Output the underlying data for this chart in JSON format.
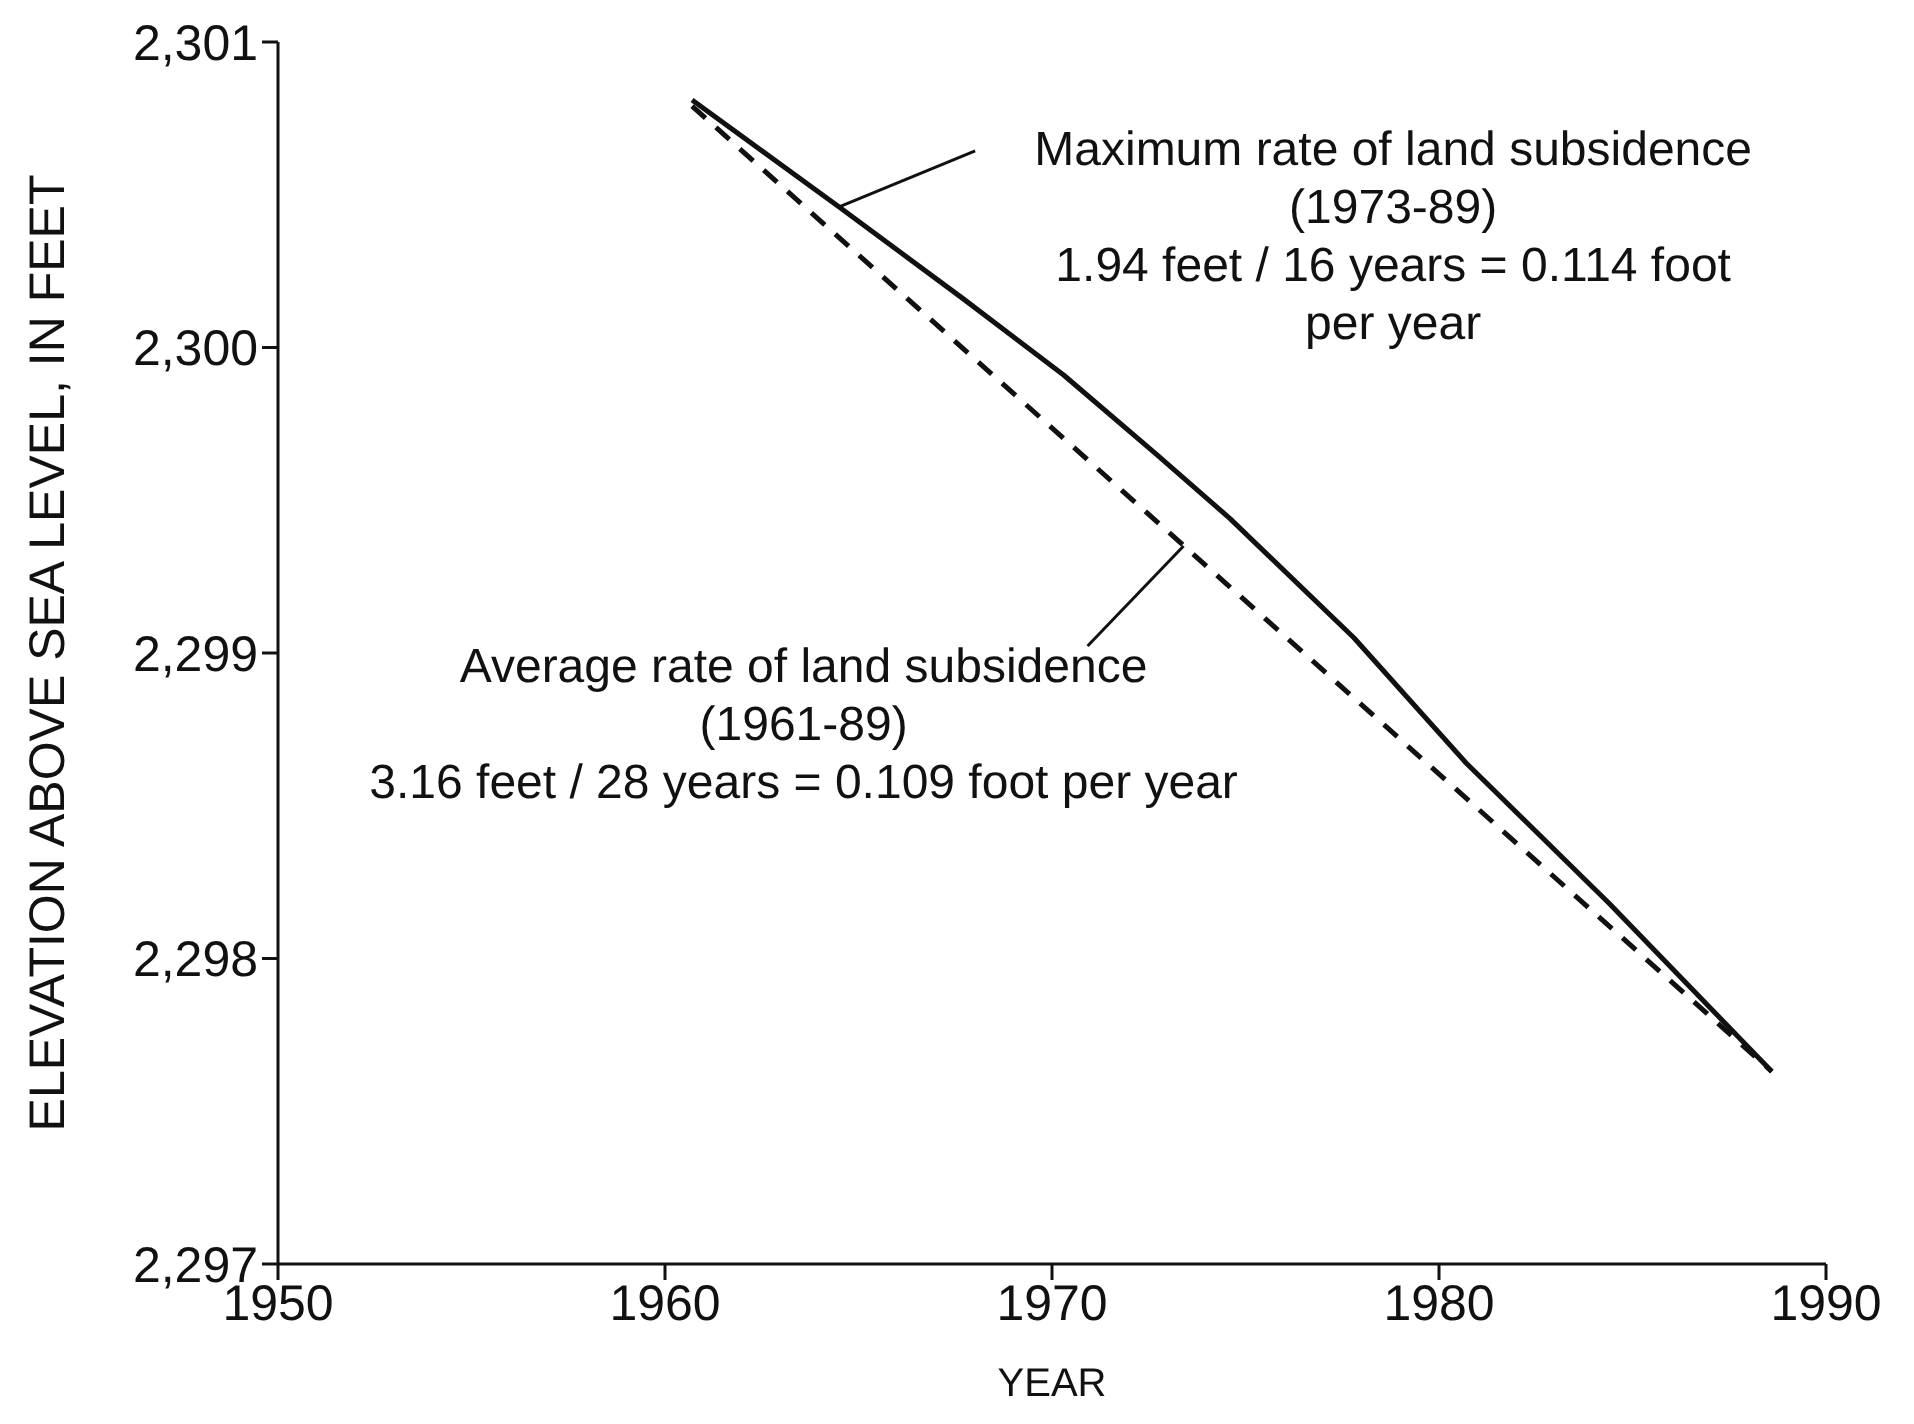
{
  "chart_data": {
    "type": "line",
    "xlabel": "YEAR",
    "ylabel": "ELEVATION ABOVE SEA LEVEL, IN FEET",
    "xlim": [
      1950,
      1990
    ],
    "xticks": [
      1950,
      1960,
      1970,
      1980,
      1990
    ],
    "ylim": [
      2297,
      2301
    ],
    "yticks": [
      {
        "value": 2297,
        "label": "2,297"
      },
      {
        "value": 2298,
        "label": "2,298"
      },
      {
        "value": 2299,
        "label": "2,299"
      },
      {
        "value": 2300,
        "label": "2,300"
      },
      {
        "value": 2301,
        "label": "2,301"
      }
    ],
    "grid": false,
    "marker": "none",
    "series": [
      {
        "color": "#111111",
        "line_style": "solid",
        "x": [
          1960.7,
          1964.5,
          1967.7,
          1970.3,
          1972.7,
          1974.6,
          1977.8,
          1980.7,
          1984.4,
          1988.6
        ],
        "values": [
          2300.81,
          2300.46,
          2300.16,
          2299.91,
          2299.65,
          2299.44,
          2299.05,
          2298.64,
          2298.18,
          2297.63
        ]
      },
      {
        "color": "#111111",
        "line_style": "dashed",
        "x": [
          1960.7,
          1988.6
        ],
        "values": [
          2300.79,
          2297.63
        ]
      }
    ],
    "annotations": [
      {
        "text": "Maximum rate of land subsidence\n(1973-89)\n1.94 feet / 16 years = 0.114 foot\nper year",
        "x": 1964.5,
        "y": 2300.46
      },
      {
        "text": "Average rate of land subsidence\n(1961-89)\n3.16 feet / 28 years = 0.109 foot per year",
        "x": 1973.4,
        "y": 2299.35
      }
    ]
  }
}
